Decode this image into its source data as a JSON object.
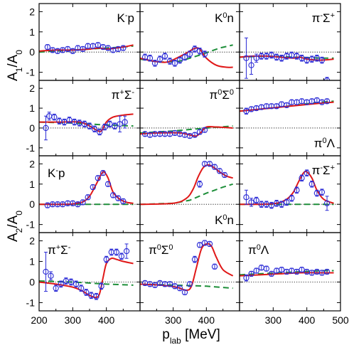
{
  "colors": {
    "data": "#2b2bd6",
    "full_model": "#e01818",
    "background_model": "#1e8f3a",
    "zero_line": "#000000",
    "frame": "#000000"
  },
  "figure": {
    "xlabel": "p_lab [MeV]",
    "xlabel_main": "p",
    "xlabel_sub": "lab",
    "xlabel_unit": " [MeV]",
    "row_group_labels": [
      {
        "main": "A",
        "sub1": "1",
        "slash": "/A",
        "sub2": "0"
      },
      {
        "main": "A",
        "sub1": "2",
        "slash": "/A",
        "sub2": "0"
      }
    ],
    "x_ticks": [
      "200",
      "300",
      "400",
      "500"
    ],
    "xlim": [
      200,
      500
    ]
  },
  "chart_data": [
    {
      "type": "scatter",
      "row": 0,
      "col": 0,
      "label": {
        "base": "K",
        "sup": "-",
        "rest": "p"
      },
      "ylim": [
        -1.4,
        2.4
      ],
      "yticks": [
        "-1",
        "0",
        "1",
        "2"
      ],
      "x": [
        225,
        240,
        255,
        270,
        285,
        300,
        315,
        330,
        345,
        360,
        375,
        390,
        405,
        420,
        435,
        450
      ],
      "y": [
        0.25,
        0.1,
        0.05,
        0.1,
        0.15,
        0.05,
        0.2,
        0.15,
        0.3,
        0.3,
        0.35,
        0.25,
        0.2,
        0.1,
        0.15,
        0.2
      ],
      "yerr": [
        0.12,
        0.12,
        0.12,
        0.12,
        0.12,
        0.12,
        0.12,
        0.12,
        0.12,
        0.12,
        0.12,
        0.12,
        0.12,
        0.12,
        0.12,
        0.12
      ],
      "full_model": {
        "x": [
          200,
          250,
          300,
          350,
          380,
          400,
          450,
          480
        ],
        "y": [
          0.05,
          0.1,
          0.1,
          0.15,
          0.2,
          0.15,
          0.25,
          0.35
        ]
      },
      "background_model": {
        "x": [
          200,
          250,
          300,
          350,
          400,
          450,
          480
        ],
        "y": [
          0.0,
          0.05,
          0.1,
          0.15,
          0.2,
          0.25,
          0.3
        ]
      }
    },
    {
      "type": "scatter",
      "row": 0,
      "col": 1,
      "label": {
        "base": "K",
        "sup": "0",
        "rest": "n"
      },
      "ylim": [
        -1.4,
        2.4
      ],
      "yticks": [],
      "x": [
        215,
        230,
        245,
        260,
        275,
        290,
        305,
        320,
        335,
        350,
        365,
        380,
        395
      ],
      "y": [
        -0.25,
        -0.3,
        -0.55,
        -0.35,
        -0.2,
        -0.45,
        -0.55,
        -0.4,
        -0.25,
        -0.1,
        0.15,
        0.05,
        -0.1
      ],
      "yerr": [
        0.15,
        0.15,
        0.15,
        0.15,
        0.15,
        0.15,
        0.15,
        0.15,
        0.15,
        0.15,
        0.15,
        0.15,
        0.15
      ],
      "full_model": {
        "x": [
          200,
          240,
          280,
          310,
          340,
          360,
          370,
          380,
          400,
          430,
          460,
          480
        ],
        "y": [
          -0.3,
          -0.45,
          -0.5,
          -0.3,
          -0.05,
          0.15,
          0.2,
          0.15,
          -0.3,
          -0.65,
          -0.75,
          -0.75
        ]
      },
      "background_model": {
        "x": [
          200,
          260,
          320,
          380,
          440,
          480
        ],
        "y": [
          -0.35,
          -0.5,
          -0.45,
          -0.15,
          0.2,
          0.35
        ]
      }
    },
    {
      "type": "scatter",
      "row": 0,
      "col": 2,
      "label": {
        "base": "π",
        "sup": "-",
        "rest": "Σ",
        "sup2": "+"
      },
      "ylim": [
        -1.4,
        2.4
      ],
      "yticks": [],
      "x": [
        220,
        235,
        250,
        265,
        280,
        295,
        310,
        325,
        340,
        355,
        370,
        385,
        400,
        415,
        430,
        445,
        460
      ],
      "y": [
        -0.3,
        -0.65,
        -0.3,
        -0.2,
        -0.2,
        -0.15,
        -0.25,
        -0.3,
        -0.2,
        -0.15,
        -0.2,
        -0.3,
        -0.4,
        -0.35,
        -0.3,
        -0.4,
        -1.4
      ],
      "yerr": [
        1.0,
        0.45,
        0.2,
        0.15,
        0.15,
        0.15,
        0.15,
        0.15,
        0.15,
        0.15,
        0.15,
        0.15,
        0.15,
        0.15,
        0.15,
        0.15,
        0.15
      ],
      "full_model": {
        "x": [
          200,
          240,
          280,
          320,
          360,
          380,
          400,
          440,
          480
        ],
        "y": [
          -0.25,
          -0.2,
          -0.2,
          -0.25,
          -0.3,
          -0.25,
          -0.35,
          -0.4,
          -0.35
        ]
      },
      "background_model": {
        "x": [
          200,
          280,
          360,
          440,
          480
        ],
        "y": [
          -0.25,
          -0.2,
          -0.25,
          -0.3,
          -0.3
        ]
      }
    },
    {
      "type": "scatter",
      "row": 1,
      "col": 0,
      "label": {
        "base": "π",
        "sup": "+",
        "rest": "Σ",
        "sup2": "-"
      },
      "ylim": [
        -1.4,
        2.4
      ],
      "yticks": [
        "-1",
        "0",
        "1",
        "2"
      ],
      "x": [
        220,
        230,
        245,
        260,
        275,
        290,
        305,
        320,
        335,
        350,
        365,
        380,
        395,
        410,
        425,
        440,
        455
      ],
      "y": [
        0.0,
        0.6,
        0.55,
        0.35,
        0.3,
        0.4,
        0.3,
        0.25,
        0.2,
        0.1,
        -0.05,
        -0.2,
        0.05,
        0.2,
        0.1,
        0.2,
        0.3
      ],
      "yerr": [
        0.6,
        0.2,
        0.15,
        0.15,
        0.15,
        0.15,
        0.15,
        0.15,
        0.15,
        0.15,
        0.15,
        0.15,
        0.15,
        0.15,
        0.15,
        0.4,
        0.3
      ],
      "full_model": {
        "x": [
          200,
          260,
          320,
          350,
          370,
          385,
          400,
          420,
          450,
          480
        ],
        "y": [
          0.3,
          0.3,
          0.3,
          0.1,
          -0.1,
          -0.15,
          0.3,
          0.55,
          0.65,
          0.7
        ]
      },
      "background_model": {
        "x": [
          200,
          300,
          400,
          480
        ],
        "y": [
          0.3,
          0.25,
          0.15,
          0.1
        ]
      }
    },
    {
      "type": "scatter",
      "row": 1,
      "col": 1,
      "label": {
        "base": "π",
        "sup": "0",
        "rest": "Σ",
        "sup2": "0"
      },
      "ylim": [
        -1.4,
        2.4
      ],
      "yticks": [],
      "x": [
        215,
        230,
        245,
        260,
        275,
        290,
        305,
        320,
        335,
        350,
        365,
        380,
        395
      ],
      "y": [
        -0.3,
        -0.35,
        -0.3,
        -0.3,
        -0.3,
        -0.3,
        -0.25,
        -0.3,
        -0.35,
        -0.4,
        -0.35,
        -0.2,
        -0.1
      ],
      "yerr": [
        0.12,
        0.12,
        0.12,
        0.12,
        0.12,
        0.12,
        0.12,
        0.12,
        0.12,
        0.12,
        0.12,
        0.12,
        0.12
      ],
      "full_model": {
        "x": [
          200,
          260,
          320,
          350,
          370,
          385,
          400,
          430,
          480
        ],
        "y": [
          -0.3,
          -0.25,
          -0.25,
          -0.35,
          -0.4,
          -0.2,
          0.05,
          0.05,
          0.0
        ]
      },
      "background_model": {
        "x": [
          200,
          300,
          400,
          480
        ],
        "y": [
          -0.25,
          -0.15,
          0.0,
          0.1
        ]
      }
    },
    {
      "type": "scatter",
      "row": 1,
      "col": 2,
      "label": {
        "base": "π",
        "sup": "0",
        "rest": "Λ"
      },
      "ylim": [
        -1.4,
        2.4
      ],
      "yticks": [],
      "x": [
        220,
        235,
        250,
        265,
        280,
        295,
        310,
        325,
        340,
        355,
        370,
        385,
        400,
        415,
        430,
        445,
        460
      ],
      "y": [
        0.85,
        0.95,
        1.0,
        1.05,
        1.1,
        1.1,
        1.1,
        1.2,
        1.15,
        1.3,
        1.3,
        1.35,
        1.3,
        1.35,
        1.4,
        1.3,
        1.35
      ],
      "yerr": [
        0.15,
        0.12,
        0.12,
        0.12,
        0.12,
        0.12,
        0.12,
        0.12,
        0.12,
        0.12,
        0.12,
        0.12,
        0.12,
        0.12,
        0.12,
        0.12,
        0.12
      ],
      "full_model": {
        "x": [
          200,
          260,
          320,
          380,
          440,
          480
        ],
        "y": [
          0.85,
          0.95,
          1.05,
          1.15,
          1.25,
          1.3
        ]
      },
      "background_model": {
        "x": [
          200,
          260,
          320,
          380,
          440,
          480
        ],
        "y": [
          0.85,
          0.95,
          1.05,
          1.18,
          1.3,
          1.35
        ]
      }
    },
    {
      "type": "scatter",
      "row": 2,
      "col": 0,
      "label": {
        "base": "K",
        "sup": "-",
        "rest": "p"
      },
      "ylim": [
        -1.4,
        2.4
      ],
      "yticks": [
        "-1",
        "0",
        "1",
        "2"
      ],
      "x": [
        225,
        240,
        255,
        270,
        285,
        300,
        315,
        330,
        345,
        360,
        375,
        390,
        405,
        420,
        435,
        450
      ],
      "y": [
        -0.05,
        0.0,
        0.0,
        0.0,
        0.05,
        0.05,
        0.0,
        0.1,
        0.35,
        0.85,
        1.3,
        1.55,
        1.0,
        0.45,
        0.3,
        0.15
      ],
      "yerr": [
        0.12,
        0.12,
        0.12,
        0.12,
        0.12,
        0.12,
        0.12,
        0.12,
        0.12,
        0.12,
        0.12,
        0.12,
        0.12,
        0.12,
        0.12,
        0.12
      ],
      "full_model": {
        "x": [
          200,
          260,
          300,
          330,
          350,
          370,
          385,
          393,
          405,
          420,
          440,
          460,
          480
        ],
        "y": [
          0.0,
          0.0,
          0.02,
          0.12,
          0.4,
          1.0,
          1.5,
          1.6,
          1.3,
          0.6,
          0.25,
          0.1,
          0.05
        ]
      },
      "background_model": {
        "x": [
          200,
          300,
          400,
          480
        ],
        "y": [
          0.0,
          0.0,
          0.0,
          0.0
        ]
      }
    },
    {
      "type": "scatter",
      "row": 2,
      "col": 1,
      "label": {
        "base": "K",
        "sup": "0",
        "rest": "n"
      },
      "ylim": [
        -1.4,
        2.4
      ],
      "yticks": [],
      "x": [
        380,
        395,
        410,
        425,
        440,
        455
      ],
      "y": [
        1.0,
        2.0,
        2.0,
        1.85,
        1.65,
        1.45
      ],
      "yerr": [
        0.15,
        0.12,
        0.12,
        0.12,
        0.12,
        0.12
      ],
      "full_model": {
        "x": [
          200,
          300,
          340,
          360,
          375,
          390,
          405,
          420,
          440,
          460,
          480
        ],
        "y": [
          0.0,
          0.05,
          0.3,
          0.75,
          1.35,
          1.8,
          1.95,
          1.85,
          1.6,
          1.4,
          1.3
        ]
      },
      "background_model": {
        "x": [
          200,
          300,
          350,
          400,
          450,
          480
        ],
        "y": [
          0.0,
          0.05,
          0.2,
          0.55,
          0.85,
          1.0
        ]
      }
    },
    {
      "type": "scatter",
      "row": 2,
      "col": 2,
      "label": {
        "base": "π",
        "sup": "-",
        "rest": "Σ",
        "sup2": "+"
      },
      "ylim": [
        -1.4,
        2.4
      ],
      "yticks": [],
      "x": [
        220,
        235,
        250,
        265,
        280,
        295,
        310,
        325,
        340,
        355,
        370,
        385,
        400,
        415,
        430,
        445,
        460
      ],
      "y": [
        0.35,
        0.1,
        0.2,
        0.0,
        0.0,
        -0.05,
        0.05,
        0.0,
        0.1,
        0.3,
        0.7,
        1.3,
        1.55,
        1.0,
        0.55,
        0.6,
        0.05
      ],
      "yerr": [
        0.35,
        0.2,
        0.15,
        0.15,
        0.15,
        0.15,
        0.15,
        0.15,
        0.15,
        0.15,
        0.15,
        0.15,
        0.15,
        0.15,
        0.15,
        0.15,
        0.35
      ],
      "full_model": {
        "x": [
          200,
          260,
          310,
          340,
          360,
          375,
          390,
          400,
          415,
          430,
          450,
          480
        ],
        "y": [
          0.0,
          0.0,
          0.05,
          0.25,
          0.6,
          1.1,
          1.55,
          1.6,
          1.3,
          0.7,
          0.25,
          0.05
        ]
      },
      "background_model": {
        "x": [
          200,
          300,
          400,
          480
        ],
        "y": [
          0.0,
          0.0,
          0.0,
          0.0
        ]
      }
    },
    {
      "type": "scatter",
      "row": 3,
      "col": 0,
      "label": {
        "base": "π",
        "sup": "+",
        "rest": "Σ",
        "sup2": "-"
      },
      "ylim": [
        -1.4,
        2.4
      ],
      "yticks": [
        "-1",
        "0",
        "1",
        "2"
      ],
      "x": [
        220,
        235,
        250,
        265,
        280,
        295,
        310,
        325,
        340,
        355,
        370,
        385,
        400,
        415,
        430,
        445,
        460
      ],
      "y": [
        0.5,
        0.3,
        -0.3,
        -0.1,
        0.05,
        0.0,
        -0.1,
        -0.3,
        -0.5,
        -0.65,
        -0.7,
        -0.2,
        1.1,
        1.45,
        1.45,
        1.25,
        1.5
      ],
      "yerr": [
        0.95,
        0.2,
        0.15,
        0.15,
        0.15,
        0.15,
        0.15,
        0.15,
        0.15,
        0.15,
        0.15,
        0.15,
        0.15,
        0.15,
        0.15,
        0.15,
        0.35
      ],
      "full_model": {
        "x": [
          200,
          250,
          300,
          330,
          350,
          370,
          380,
          390,
          400,
          415,
          430,
          450,
          480
        ],
        "y": [
          0.0,
          -0.1,
          -0.25,
          -0.45,
          -0.65,
          -0.75,
          -0.55,
          0.2,
          0.9,
          1.15,
          1.1,
          1.0,
          0.9
        ]
      },
      "background_model": {
        "x": [
          200,
          300,
          400,
          480
        ],
        "y": [
          0.05,
          0.0,
          -0.1,
          -0.15
        ]
      }
    },
    {
      "type": "scatter",
      "row": 3,
      "col": 1,
      "label": {
        "base": "π",
        "sup": "0",
        "rest": "Σ",
        "sup2": "0"
      },
      "ylim": [
        -1.4,
        2.4
      ],
      "yticks": [],
      "x": [
        215,
        230,
        245,
        260,
        275,
        290,
        305,
        320,
        335,
        350,
        365,
        380,
        395,
        410,
        425
      ],
      "y": [
        -0.05,
        -0.1,
        -0.15,
        -0.05,
        -0.1,
        -0.1,
        -0.2,
        -0.3,
        -0.5,
        -0.1,
        1.1,
        1.8,
        1.9,
        1.85,
        0.75
      ],
      "yerr": [
        0.12,
        0.12,
        0.12,
        0.12,
        0.12,
        0.12,
        0.12,
        0.12,
        0.12,
        0.12,
        0.15,
        0.12,
        0.12,
        0.12,
        0.12
      ],
      "full_model": {
        "x": [
          200,
          260,
          310,
          340,
          355,
          370,
          385,
          400,
          415,
          430,
          450,
          480
        ],
        "y": [
          -0.1,
          -0.15,
          -0.25,
          -0.4,
          -0.2,
          0.7,
          1.6,
          1.85,
          1.75,
          1.2,
          0.6,
          0.3
        ]
      },
      "background_model": {
        "x": [
          200,
          300,
          400,
          480
        ],
        "y": [
          -0.1,
          -0.15,
          -0.2,
          -0.3
        ]
      }
    },
    {
      "type": "scatter",
      "row": 3,
      "col": 2,
      "label": {
        "base": "π",
        "sup": "0",
        "rest": "Λ"
      },
      "ylim": [
        -1.4,
        2.4
      ],
      "yticks": [],
      "x": [
        220,
        235,
        250,
        265,
        280,
        295,
        310,
        325,
        340,
        355,
        370,
        385,
        400,
        415,
        430,
        445,
        460
      ],
      "y": [
        0.2,
        0.4,
        0.55,
        0.7,
        0.65,
        0.4,
        0.55,
        0.6,
        0.5,
        0.55,
        0.5,
        0.6,
        0.5,
        0.45,
        0.5,
        0.45,
        0.5
      ],
      "yerr": [
        0.15,
        0.12,
        0.12,
        0.12,
        0.12,
        0.12,
        0.12,
        0.12,
        0.12,
        0.12,
        0.12,
        0.12,
        0.12,
        0.12,
        0.12,
        0.12,
        0.12
      ],
      "full_model": {
        "x": [
          200,
          260,
          320,
          380,
          440,
          480
        ],
        "y": [
          0.3,
          0.35,
          0.4,
          0.45,
          0.45,
          0.45
        ]
      },
      "background_model": {
        "x": [
          200,
          260,
          320,
          380,
          440,
          480
        ],
        "y": [
          0.35,
          0.4,
          0.45,
          0.5,
          0.55,
          0.55
        ]
      }
    }
  ]
}
